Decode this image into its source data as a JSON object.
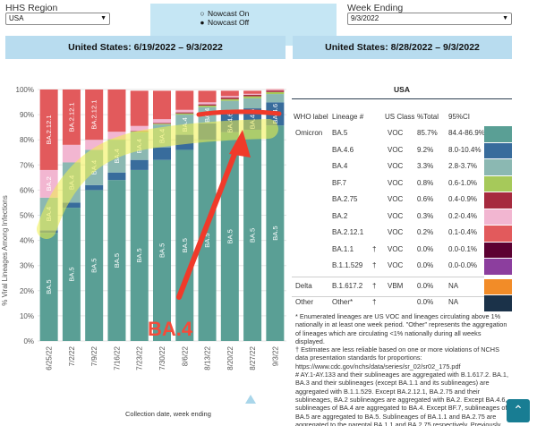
{
  "controls": {
    "region_label": "HHS Region",
    "region_value": "USA",
    "nowcast_on": "Nowcast On",
    "nowcast_off": "Nowcast Off",
    "week_label": "Week Ending",
    "week_value": "9/3/2022"
  },
  "headers": {
    "left": "United States: 6/19/2022 – 9/3/2022",
    "right": "United States: 8/28/2022 – 9/3/2022"
  },
  "annotation": {
    "callout": "BA.4",
    "highlight_color": "#f0f04a",
    "arrow_color": "#f03a2a"
  },
  "chart_data": {
    "type": "bar",
    "stacked": true,
    "xlabel": "Collection date, week ending",
    "ylabel": "% Viral Lineages Among Infections",
    "ylim": [
      0,
      100
    ],
    "y_ticks": [
      "0%",
      "10%",
      "20%",
      "30%",
      "40%",
      "50%",
      "60%",
      "70%",
      "80%",
      "90%",
      "100%"
    ],
    "categories": [
      "6/25/22",
      "7/2/22",
      "7/9/22",
      "7/16/22",
      "7/23/22",
      "7/30/22",
      "8/6/22",
      "8/13/22",
      "8/20/22",
      "8/27/22",
      "9/3/22"
    ],
    "series": [
      {
        "name": "BA.5",
        "color": "#5a9f95",
        "values": [
          43,
          53,
          60,
          64,
          68,
          72,
          76,
          80,
          83,
          84,
          85.7
        ]
      },
      {
        "name": "BA.4.6",
        "color": "#386c9c",
        "values": [
          1,
          2,
          2,
          3,
          4,
          5,
          6,
          6.5,
          7.5,
          8.5,
          9.2
        ]
      },
      {
        "name": "BA.4",
        "color": "#8bb8b2",
        "values": [
          13,
          16,
          14,
          13,
          11,
          9,
          8,
          6.5,
          5,
          4,
          3.3
        ]
      },
      {
        "name": "BF.7",
        "color": "#a6c95a",
        "values": [
          0,
          0,
          0,
          0.2,
          0.3,
          0.4,
          0.5,
          0.6,
          0.7,
          0.8,
          0.8
        ]
      },
      {
        "name": "BA.2.75",
        "color": "#a62a3e",
        "values": [
          0,
          0,
          0,
          0,
          0.2,
          0.3,
          0.4,
          0.5,
          0.6,
          0.6,
          0.6
        ]
      },
      {
        "name": "BA.2",
        "color": "#f2b6d1",
        "values": [
          11,
          7,
          4,
          3,
          2,
          1.5,
          1,
          0.8,
          0.6,
          0.4,
          0.3
        ]
      },
      {
        "name": "BA.2.12.1",
        "color": "#e25a5c",
        "values": [
          32,
          22,
          20,
          16.8,
          14,
          11.3,
          7.6,
          4.6,
          2.1,
          1.2,
          0.2
        ]
      },
      {
        "name": "BA.1.1",
        "color": "#5c0032",
        "values": [
          0,
          0,
          0,
          0,
          0,
          0,
          0,
          0,
          0,
          0,
          0
        ]
      },
      {
        "name": "B.1.1.529",
        "color": "#8c3e9e",
        "values": [
          0,
          0,
          0,
          0,
          0,
          0,
          0,
          0,
          0,
          0,
          0
        ]
      },
      {
        "name": "B.1.617.2",
        "color": "#f28c28",
        "values": [
          0,
          0,
          0,
          0,
          0,
          0,
          0,
          0,
          0,
          0,
          0
        ]
      },
      {
        "name": "Other",
        "color": "#1b3249",
        "values": [
          0,
          0,
          0,
          0,
          0,
          0,
          0,
          0,
          0,
          0,
          0
        ]
      }
    ],
    "segment_labels": [
      {
        "bar": 0,
        "series": "BA.5"
      },
      {
        "bar": 0,
        "series": "BA.4"
      },
      {
        "bar": 0,
        "series": "BA.2"
      },
      {
        "bar": 0,
        "series": "BA.2.12.1"
      },
      {
        "bar": 1,
        "series": "BA.5"
      },
      {
        "bar": 1,
        "series": "BA.4"
      },
      {
        "bar": 1,
        "series": "BA.2.12.1"
      },
      {
        "bar": 2,
        "series": "BA.5"
      },
      {
        "bar": 2,
        "series": "BA.4"
      },
      {
        "bar": 2,
        "series": "BA.2.12.1"
      },
      {
        "bar": 3,
        "series": "BA.5"
      },
      {
        "bar": 3,
        "series": "BA.4"
      },
      {
        "bar": 4,
        "series": "BA.5"
      },
      {
        "bar": 4,
        "series": "BA.4"
      },
      {
        "bar": 5,
        "series": "BA.5"
      },
      {
        "bar": 5,
        "series": "BA.4"
      },
      {
        "bar": 6,
        "series": "BA.5"
      },
      {
        "bar": 6,
        "series": "BA.4"
      },
      {
        "bar": 7,
        "series": "BA.5"
      },
      {
        "bar": 7,
        "series": "BA.4"
      },
      {
        "bar": 8,
        "series": "BA.5"
      },
      {
        "bar": 8,
        "series": "BA.4.6"
      },
      {
        "bar": 9,
        "series": "BA.5"
      },
      {
        "bar": 9,
        "series": "BA.4.6"
      },
      {
        "bar": 10,
        "series": "BA.5"
      },
      {
        "bar": 10,
        "series": "BA.4.6"
      }
    ]
  },
  "table": {
    "title": "USA",
    "headers": {
      "who": "WHO label",
      "lineage": "Lineage #",
      "class": "US Class",
      "total": "%Total",
      "ci": "95%CI"
    },
    "rows": [
      {
        "who": "Omicron",
        "lineage": "BA.5",
        "mark": "",
        "cls": "VOC",
        "total": "85.7%",
        "ci": "84.4-86.9%",
        "color": "#5a9f95"
      },
      {
        "who": "",
        "lineage": "BA.4.6",
        "mark": "",
        "cls": "VOC",
        "total": "9.2%",
        "ci": "8.0-10.4%",
        "color": "#386c9c"
      },
      {
        "who": "",
        "lineage": "BA.4",
        "mark": "",
        "cls": "VOC",
        "total": "3.3%",
        "ci": "2.8-3.7%",
        "color": "#8bb8b2"
      },
      {
        "who": "",
        "lineage": "BF.7",
        "mark": "",
        "cls": "VOC",
        "total": "0.8%",
        "ci": "0.6-1.0%",
        "color": "#a6c95a"
      },
      {
        "who": "",
        "lineage": "BA.2.75",
        "mark": "",
        "cls": "VOC",
        "total": "0.6%",
        "ci": "0.4-0.9%",
        "color": "#a62a3e"
      },
      {
        "who": "",
        "lineage": "BA.2",
        "mark": "",
        "cls": "VOC",
        "total": "0.3%",
        "ci": "0.2-0.4%",
        "color": "#f2b6d1"
      },
      {
        "who": "",
        "lineage": "BA.2.12.1",
        "mark": "",
        "cls": "VOC",
        "total": "0.2%",
        "ci": "0.1-0.4%",
        "color": "#e25a5c"
      },
      {
        "who": "",
        "lineage": "BA.1.1",
        "mark": "†",
        "cls": "VOC",
        "total": "0.0%",
        "ci": "0.0-0.1%",
        "color": "#5c0032"
      },
      {
        "who": "",
        "lineage": "B.1.1.529",
        "mark": "†",
        "cls": "VOC",
        "total": "0.0%",
        "ci": "0.0-0.0%",
        "color": "#8c3e9e"
      },
      {
        "who": "Delta",
        "lineage": "B.1.617.2",
        "mark": "†",
        "cls": "VBM",
        "total": "0.0%",
        "ci": "NA",
        "color": "#f28c28"
      },
      {
        "who": "Other",
        "lineage": "Other*",
        "mark": "†",
        "cls": "",
        "total": "0.0%",
        "ci": "NA",
        "color": "#1b3249"
      }
    ]
  },
  "footnotes": {
    "n1": "*      Enumerated lineages are US VOC and lineages circulating above 1% nationally in at least one week period. \"Other\" represents the aggregation of lineages which are circulating <1% nationally during all weeks displayed.",
    "n2": "†      Estimates are less reliable based on one or more violations of NCHS data presentation standards for proportions: https://www.cdc.gov/nchs/data/series/sr_02/sr02_175.pdf",
    "n3": "#      AY.1-AY.133 and their sublineages are aggregated with B.1.617.2. BA.1, BA.3 and their sublineages (except BA.1.1 and its sublineages) are aggregated with B.1.1.529. Except BA.2.12.1, BA.2.75 and their sublineages, BA.2 sublineages are aggregated with BA.2. Except BA.4.6, sublineages of BA.4 are aggregated to BA.4. Except BF.7, sublineages of BA.5 are aggregated to BA.5. Sublineages of BA.1.1 and BA.2.75 are aggregated to the parental BA.1.1 and BA.2.75 respectively. Previously, ..."
  }
}
